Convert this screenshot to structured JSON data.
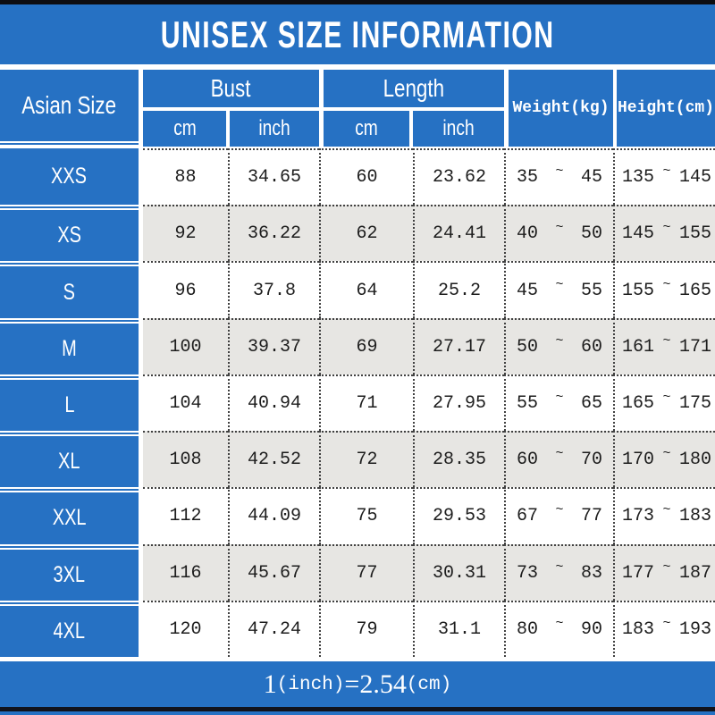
{
  "title": "UNISEX SIZE INFORMATION",
  "header": {
    "asian_size": "Asian Size",
    "bust": "Bust",
    "length": "Length",
    "cm": "cm",
    "inch": "inch",
    "weight": "Weight(kg)",
    "height": "Height(cm)"
  },
  "symbols": {
    "tilde": "~"
  },
  "rows": [
    {
      "size": "XXS",
      "bust_cm": "88",
      "bust_inch": "34.65",
      "length_cm": "60",
      "length_inch": "23.62",
      "weight_min": "35",
      "weight_max": "45",
      "height_min": "135",
      "height_max": "145"
    },
    {
      "size": "XS",
      "bust_cm": "92",
      "bust_inch": "36.22",
      "length_cm": "62",
      "length_inch": "24.41",
      "weight_min": "40",
      "weight_max": "50",
      "height_min": "145",
      "height_max": "155"
    },
    {
      "size": "S",
      "bust_cm": "96",
      "bust_inch": "37.8",
      "length_cm": "64",
      "length_inch": "25.2",
      "weight_min": "45",
      "weight_max": "55",
      "height_min": "155",
      "height_max": "165"
    },
    {
      "size": "M",
      "bust_cm": "100",
      "bust_inch": "39.37",
      "length_cm": "69",
      "length_inch": "27.17",
      "weight_min": "50",
      "weight_max": "60",
      "height_min": "161",
      "height_max": "171"
    },
    {
      "size": "L",
      "bust_cm": "104",
      "bust_inch": "40.94",
      "length_cm": "71",
      "length_inch": "27.95",
      "weight_min": "55",
      "weight_max": "65",
      "height_min": "165",
      "height_max": "175"
    },
    {
      "size": "XL",
      "bust_cm": "108",
      "bust_inch": "42.52",
      "length_cm": "72",
      "length_inch": "28.35",
      "weight_min": "60",
      "weight_max": "70",
      "height_min": "170",
      "height_max": "180"
    },
    {
      "size": "XXL",
      "bust_cm": "112",
      "bust_inch": "44.09",
      "length_cm": "75",
      "length_inch": "29.53",
      "weight_min": "67",
      "weight_max": "77",
      "height_min": "173",
      "height_max": "183"
    },
    {
      "size": "3XL",
      "bust_cm": "116",
      "bust_inch": "45.67",
      "length_cm": "77",
      "length_inch": "30.31",
      "weight_min": "73",
      "weight_max": "83",
      "height_min": "177",
      "height_max": "187"
    },
    {
      "size": "4XL",
      "bust_cm": "120",
      "bust_inch": "47.24",
      "length_cm": "79",
      "length_inch": "31.1",
      "weight_min": "80",
      "weight_max": "90",
      "height_min": "183",
      "height_max": "193"
    }
  ],
  "footer": {
    "parts": [
      "1",
      "(inch)",
      "=",
      "2.54",
      "(cm)"
    ]
  },
  "colors": {
    "blue": "#2671c3",
    "row_alt": "#e7e6e3",
    "border_dotted": "#404040",
    "bar_black": "#0d0d11"
  },
  "chart_data": {
    "type": "table",
    "title": "UNISEX SIZE INFORMATION",
    "columns": [
      "Asian Size",
      "Bust cm",
      "Bust inch",
      "Length cm",
      "Length inch",
      "Weight(kg)",
      "Height(cm)"
    ],
    "rows": [
      [
        "XXS",
        88,
        34.65,
        60,
        23.62,
        "35~45",
        "135~145"
      ],
      [
        "XS",
        92,
        36.22,
        62,
        24.41,
        "40~50",
        "145~155"
      ],
      [
        "S",
        96,
        37.8,
        64,
        25.2,
        "45~55",
        "155~165"
      ],
      [
        "M",
        100,
        39.37,
        69,
        27.17,
        "50~60",
        "161~171"
      ],
      [
        "L",
        104,
        40.94,
        71,
        27.95,
        "55~65",
        "165~175"
      ],
      [
        "XL",
        108,
        42.52,
        72,
        28.35,
        "60~70",
        "170~180"
      ],
      [
        "XXL",
        112,
        44.09,
        75,
        29.53,
        "67~77",
        "173~183"
      ],
      [
        "3XL",
        116,
        45.67,
        77,
        30.31,
        "73~83",
        "177~187"
      ],
      [
        "4XL",
        120,
        47.24,
        79,
        31.1,
        "80~90",
        "183~193"
      ]
    ],
    "note": "1(inch)=2.54(cm)"
  }
}
